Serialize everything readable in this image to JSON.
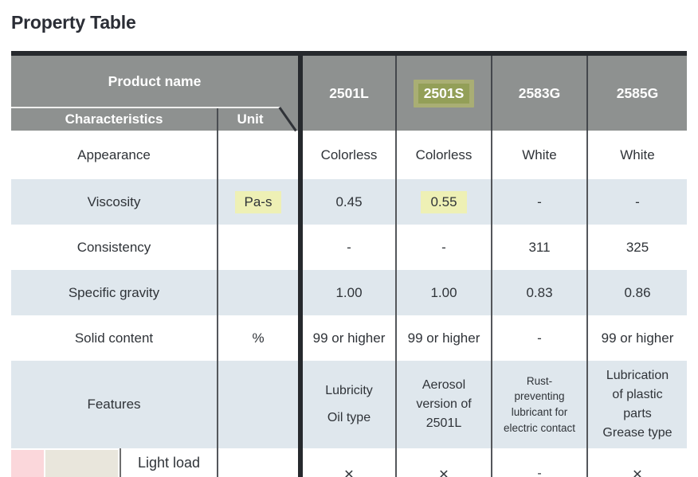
{
  "title": "Property Table",
  "colors": {
    "header_gray": "#8e9190",
    "border_dark": "#26292d",
    "row_blue": "#dfe7ed",
    "highlight_yellow": "#eef0b5",
    "highlight_olive": "#939f58",
    "category_pink": "#fbd7db",
    "category_beige": "#e9e6dc"
  },
  "table": {
    "corner": {
      "product_name": "Product name",
      "characteristics": "Characteristics",
      "unit": "Unit"
    },
    "products": [
      "2501L",
      "2501S",
      "2583G",
      "2585G"
    ],
    "highlighted_product": "2501S",
    "rows": [
      {
        "label": "Appearance",
        "unit": "",
        "values": [
          "Colorless",
          "Colorless",
          "White",
          "White"
        ]
      },
      {
        "label": "Viscosity",
        "unit": "Pa-s",
        "values": [
          "0.45",
          "0.55",
          "-",
          "-"
        ]
      },
      {
        "label": "Consistency",
        "unit": "",
        "values": [
          "-",
          "-",
          "311",
          "325"
        ]
      },
      {
        "label": "Specific gravity",
        "unit": "",
        "values": [
          "1.00",
          "1.00",
          "0.83",
          "0.86"
        ]
      },
      {
        "label": "Solid content",
        "unit": "%",
        "values": [
          "99 or higher",
          "99 or higher",
          "-",
          "99 or higher"
        ]
      },
      {
        "label": "Features",
        "unit": "",
        "values": [
          "Lubricity\nOil type",
          "Aerosol\nversion of\n2501L",
          "Rust-\npreventing\nlubricant for\nelectric contact",
          "Lubrication\nof plastic\nparts\nGrease type"
        ]
      }
    ],
    "partial_row": {
      "label": "Light load",
      "unit": "",
      "values": [
        "✕",
        "✕",
        "-",
        "✕"
      ]
    }
  }
}
